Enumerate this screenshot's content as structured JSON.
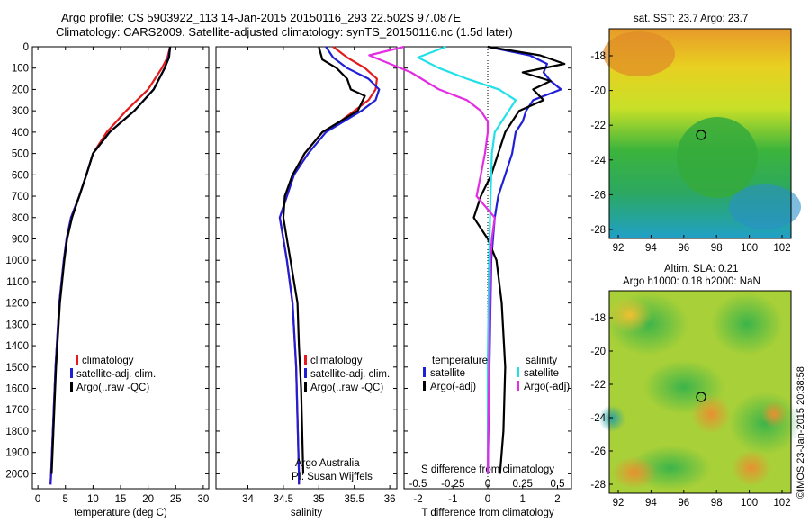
{
  "title": {
    "line1": "Argo profile: CS 5903922_113 14-Jan-2015 20150116_293 22.502S 97.087E",
    "line2": "Climatology: CARS2009. Satellite-adjusted climatology: synTS_20150116.nc (1.5d later)"
  },
  "colors": {
    "climatology": "#e41a1c",
    "satellite": "#1f1fd6",
    "argo": "#000000",
    "salinity_sat": "#22e0e8",
    "salinity_argo": "#e32de3"
  },
  "credit": {
    "line1": "Argo Australia",
    "line2": "PI: Susan Wijffels"
  },
  "timestamp": "©IMOS 23-Jan-2015 20:38:58",
  "legend_profiles": [
    "climatology",
    "satellite-adj. clim.",
    "Argo(..raw -QC)"
  ],
  "legend_diff": {
    "temp_head": "temperature",
    "sal_head": "salinity",
    "temp_sat": "satellite",
    "temp_argo": "Argo(-adj)",
    "sal_sat": "satellite",
    "sal_argo": "Argo(-adj)"
  },
  "maps": {
    "sst_title": "sat. SST: 23.7 Argo: 23.7",
    "sla_title1": "Altim. SLA: 0.21",
    "sla_title2": "Argo h1000: 0.18 h2000: NaN",
    "xticks": [
      "92",
      "94",
      "96",
      "98",
      "100",
      "102"
    ],
    "yticks": [
      "-18",
      "-20",
      "-22",
      "-24",
      "-26",
      "-28"
    ]
  },
  "chart_data": [
    {
      "type": "line",
      "xlabel": "temperature (deg C)",
      "xlim": [
        -1,
        31
      ],
      "ylim": [
        2070,
        0
      ],
      "xticks": [
        0,
        5,
        10,
        15,
        20,
        25,
        30
      ],
      "yticks": [
        0,
        100,
        200,
        300,
        400,
        500,
        600,
        700,
        800,
        900,
        1000,
        1100,
        1200,
        1300,
        1400,
        1500,
        1600,
        1700,
        1800,
        1900,
        2000
      ],
      "series": [
        {
          "name": "climatology",
          "depth": [
            0,
            50,
            100,
            200,
            300,
            400,
            500,
            600,
            700,
            800,
            900,
            1000,
            1200,
            1500,
            2000,
            2050
          ],
          "values": [
            24,
            23.5,
            22.5,
            20,
            16,
            12.5,
            10,
            8.8,
            7.5,
            6,
            5.2,
            4.7,
            3.9,
            3.2,
            2.4,
            2.3
          ]
        },
        {
          "name": "satellite-adj. clim.",
          "depth": [
            0,
            50,
            100,
            200,
            300,
            400,
            500,
            600,
            700,
            800,
            900,
            1000,
            1200,
            1500,
            2000,
            2050
          ],
          "values": [
            24,
            23.7,
            23,
            21,
            17.5,
            13,
            10,
            8.8,
            7.5,
            6,
            5.2,
            4.7,
            3.9,
            3.2,
            2.4,
            2.3
          ]
        },
        {
          "name": "Argo(..raw -QC)",
          "depth": [
            0,
            50,
            100,
            200,
            300,
            400,
            500,
            600,
            700,
            800,
            900,
            1000,
            1200,
            1500,
            2000
          ],
          "values": [
            24,
            23.8,
            23,
            21,
            17.5,
            13,
            10,
            8.8,
            7.5,
            6.2,
            5.3,
            4.8,
            4,
            3.3,
            2.5
          ]
        }
      ]
    },
    {
      "type": "line",
      "xlabel": "salinity",
      "xlim": [
        33.55,
        36.1
      ],
      "ylim": [
        2070,
        0
      ],
      "xticks": [
        34,
        34.5,
        35,
        35.5,
        36
      ],
      "series": [
        {
          "name": "climatology",
          "depth": [
            0,
            50,
            100,
            150,
            200,
            250,
            300,
            350,
            400,
            500,
            600,
            700,
            800,
            900,
            1000,
            1200,
            1500,
            2000,
            2050
          ],
          "values": [
            35.2,
            35.4,
            35.65,
            35.82,
            35.8,
            35.7,
            35.5,
            35.3,
            35.05,
            34.8,
            34.65,
            34.55,
            34.45,
            34.5,
            34.55,
            34.63,
            34.68,
            34.72,
            34.72
          ]
        },
        {
          "name": "satellite-adj. clim.",
          "depth": [
            0,
            50,
            100,
            150,
            200,
            250,
            300,
            350,
            400,
            500,
            600,
            700,
            800,
            900,
            1000,
            1200,
            1500,
            2000,
            2050
          ],
          "values": [
            35.1,
            35.2,
            35.4,
            35.7,
            35.85,
            35.8,
            35.6,
            35.35,
            35.1,
            34.85,
            34.65,
            34.55,
            34.45,
            34.5,
            34.55,
            34.63,
            34.68,
            34.72,
            34.72
          ]
        },
        {
          "name": "Argo(..raw -QC)",
          "depth": [
            0,
            60,
            100,
            150,
            200,
            230,
            300,
            350,
            400,
            500,
            600,
            700,
            800,
            900,
            1000,
            1100,
            1200,
            1400,
            1600,
            2000
          ],
          "values": [
            35,
            35.05,
            35.25,
            35.4,
            35.45,
            35.65,
            35.55,
            35.3,
            35.05,
            34.8,
            34.63,
            34.52,
            34.5,
            34.55,
            34.6,
            34.65,
            34.7,
            34.72,
            34.75,
            34.78
          ]
        }
      ]
    },
    {
      "type": "line",
      "xlabel": "T difference from climatology",
      "x2label": "S difference from climatology",
      "xlim": [
        -2.4,
        2.4
      ],
      "ylim": [
        2070,
        0
      ],
      "xticks": [
        "-2",
        "-1",
        "0",
        "1",
        "2"
      ],
      "x2ticks": [
        "-0.5",
        "-0.25",
        "0",
        "0.25",
        "0.5"
      ],
      "series": [
        {
          "name": "temperature satellite",
          "depth": [
            0,
            40,
            80,
            120,
            160,
            200,
            250,
            300,
            350,
            400,
            500,
            600,
            700,
            800,
            900,
            1000,
            1500,
            2000
          ],
          "values": [
            0,
            1.2,
            1.7,
            1.6,
            1.8,
            2.1,
            1.3,
            1.1,
            1,
            0.8,
            0.7,
            0.5,
            0.3,
            0.2,
            0.15,
            0.1,
            0.05,
            0
          ]
        },
        {
          "name": "temperature Argo(-adj)",
          "depth": [
            0,
            40,
            80,
            120,
            160,
            200,
            250,
            300,
            350,
            400,
            500,
            600,
            700,
            800,
            900,
            1000,
            1200,
            1500,
            1800,
            2000
          ],
          "values": [
            0,
            1.5,
            2.2,
            1.0,
            1.8,
            1.3,
            1.6,
            0.9,
            0.7,
            0.5,
            0.3,
            0.1,
            -0.2,
            -0.4,
            0.0,
            0.25,
            0.4,
            0.5,
            0.45,
            0.35
          ]
        },
        {
          "name": "salinity satellite",
          "depth": [
            0,
            50,
            100,
            150,
            200,
            250,
            300,
            350,
            400,
            500,
            700,
            1000,
            1500,
            2000
          ],
          "values": [
            -0.3,
            -0.5,
            -0.35,
            -0.15,
            0.08,
            0.2,
            0.15,
            0.1,
            0.05,
            0.03,
            0.02,
            0.01,
            0,
            0
          ]
        },
        {
          "name": "salinity Argo(-adj)",
          "depth": [
            0,
            40,
            80,
            120,
            160,
            200,
            250,
            300,
            350,
            400,
            500,
            600,
            700,
            800,
            900,
            1000,
            1500,
            2000
          ],
          "values": [
            -0.6,
            -0.85,
            -0.7,
            -0.55,
            -0.45,
            -0.35,
            -0.15,
            -0.05,
            0,
            0.0,
            -0.02,
            -0.05,
            -0.08,
            0.05,
            0.03,
            0.02,
            0.01,
            0
          ]
        }
      ]
    }
  ]
}
